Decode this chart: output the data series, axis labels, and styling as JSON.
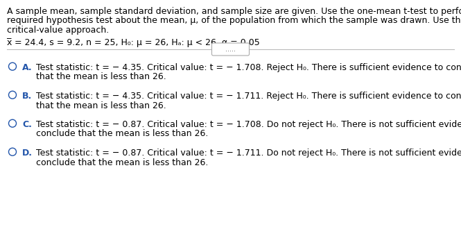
{
  "bg_color": "#ffffff",
  "text_color": "#000000",
  "blue_color": "#2255aa",
  "line_color": "#aaaaaa",
  "para_line1": "A sample mean, sample standard deviation, and sample size are given. Use the one-mean t-test to perform the",
  "para_line2": "required hypothesis test about the mean, μ, of the population from which the sample was drawn. Use the",
  "para_line3": "critical-value approach.",
  "dots": ".....",
  "options": [
    {
      "letter": "A.",
      "line1": "Test statistic: t = − 4.35. Critical value: t = − 1.708. Reject H₀. There is sufficient evidence to conclude",
      "line2": "that the mean is less than 26."
    },
    {
      "letter": "B.",
      "line1": "Test statistic: t = − 4.35. Critical value: t = − 1.711. Reject H₀. There is sufficient evidence to conclude",
      "line2": "that the mean is less than 26."
    },
    {
      "letter": "C.",
      "line1": "Test statistic: t = − 0.87. Critical value: t = − 1.708. Do not reject H₀. There is not sufficient evidence to",
      "line2": "conclude that the mean is less than 26."
    },
    {
      "letter": "D.",
      "line1": "Test statistic: t = − 0.87. Critical value: t = − 1.711. Do not reject H₀. There is not sufficient evidence to",
      "line2": "conclude that the mean is less than 26."
    }
  ],
  "font_size": 9.0,
  "font_size_params": 9.0
}
